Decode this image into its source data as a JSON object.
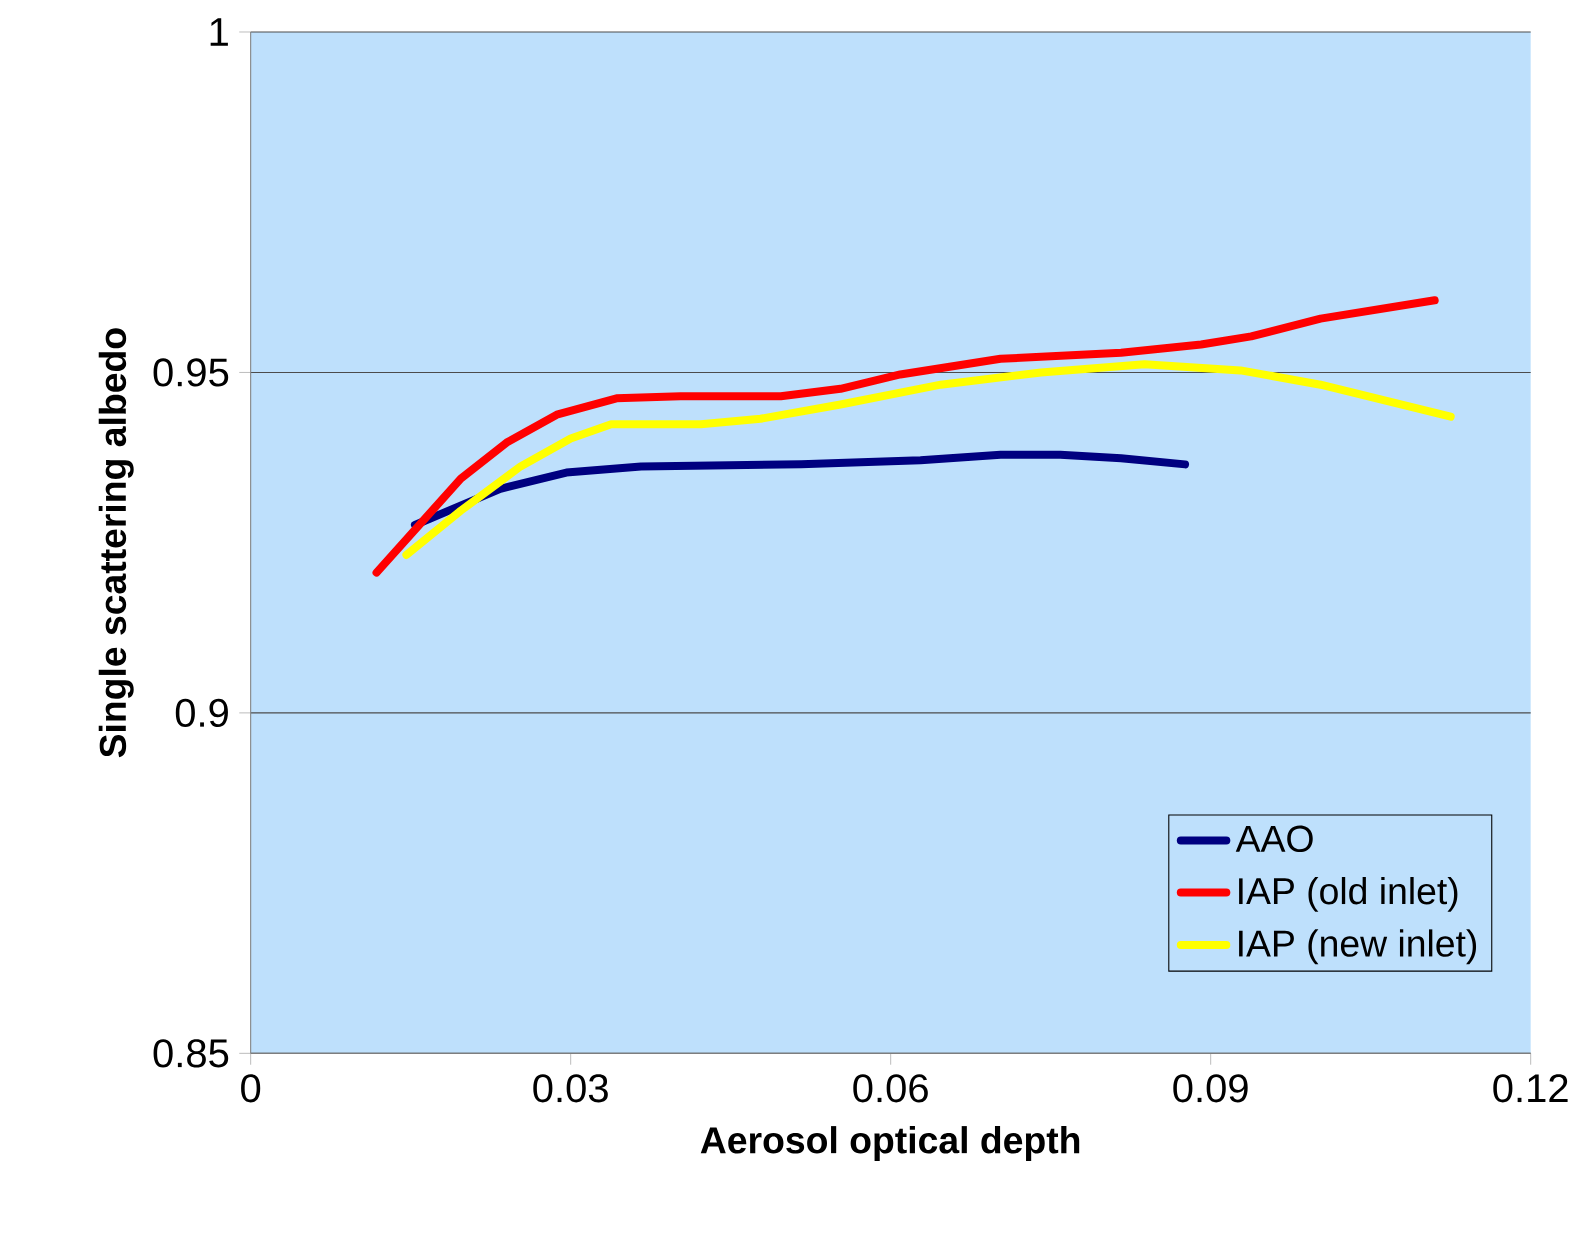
{
  "chart_data": {
    "type": "line",
    "xlabel": "Aerosol optical depth",
    "ylabel": "Single scattering albedo",
    "xlim": [
      0,
      0.12
    ],
    "ylim": [
      0.85,
      1
    ],
    "xticks": [
      0,
      0.03,
      0.06,
      0.09,
      0.12
    ],
    "yticks": [
      0.85,
      0.9,
      0.95,
      1
    ],
    "grid": "y",
    "legend": "bottom right",
    "marker": "none",
    "line_style": "solid",
    "series": [
      {
        "name": "AAO",
        "color": "#000080",
        "x": [
          0.0154,
          0.0234,
          0.0296,
          0.0366,
          0.0516,
          0.0628,
          0.0703,
          0.0759,
          0.0816,
          0.0876
        ],
        "values": [
          0.9276,
          0.9329,
          0.9353,
          0.9362,
          0.9365,
          0.9371,
          0.9379,
          0.9379,
          0.9374,
          0.9365
        ]
      },
      {
        "name": "IAP (old inlet)",
        "color": "#ff0000",
        "x": [
          0.0118,
          0.0197,
          0.024,
          0.0287,
          0.0343,
          0.0403,
          0.0497,
          0.0553,
          0.0609,
          0.0703,
          0.0816,
          0.0891,
          0.0938,
          0.1003,
          0.111
        ],
        "values": [
          0.9206,
          0.9344,
          0.9397,
          0.9438,
          0.9462,
          0.9465,
          0.9465,
          0.9476,
          0.9497,
          0.952,
          0.9529,
          0.9541,
          0.9553,
          0.9579,
          0.9606
        ]
      },
      {
        "name": "IAP (new inlet)",
        "color": "#ffff00",
        "x": [
          0.0146,
          0.0197,
          0.0253,
          0.03,
          0.0338,
          0.0422,
          0.0478,
          0.0553,
          0.0647,
          0.0741,
          0.0838,
          0.0928,
          0.1003,
          0.1125
        ],
        "values": [
          0.9232,
          0.9297,
          0.9362,
          0.9403,
          0.9424,
          0.9424,
          0.9432,
          0.9453,
          0.9482,
          0.95,
          0.9512,
          0.9503,
          0.9482,
          0.9435
        ]
      }
    ]
  }
}
